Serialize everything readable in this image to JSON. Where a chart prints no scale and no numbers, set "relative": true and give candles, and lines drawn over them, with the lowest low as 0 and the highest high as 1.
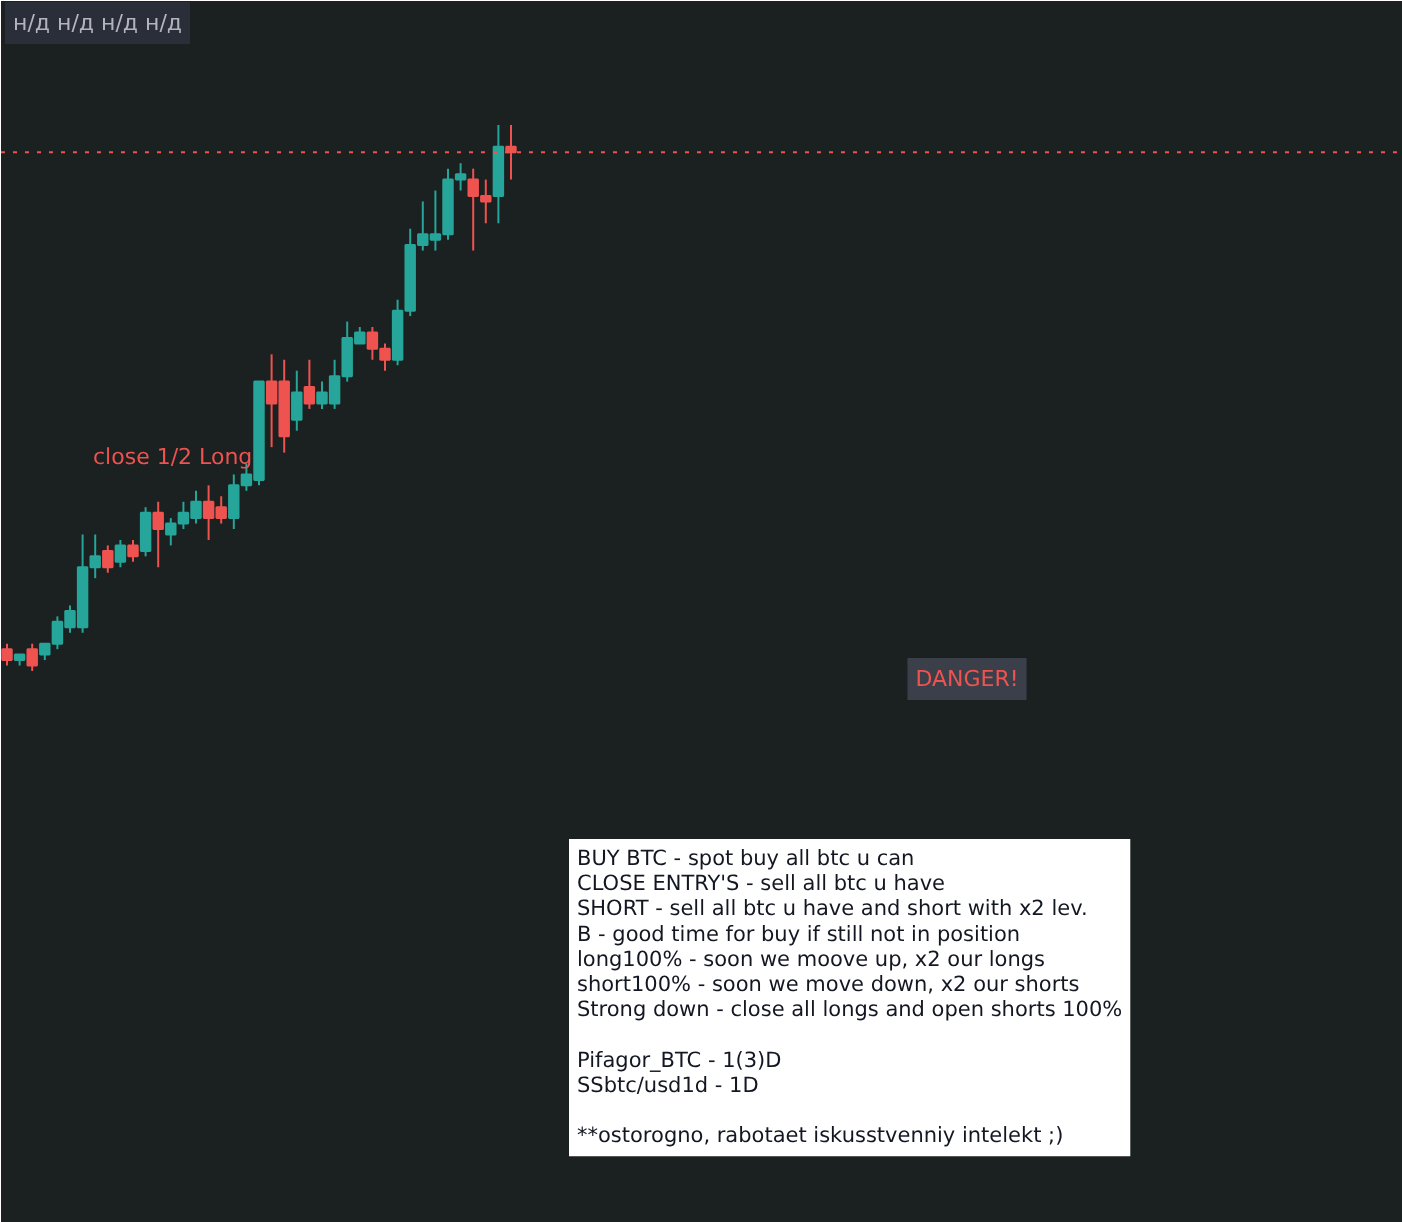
{
  "chart_data": {
    "type": "candlestick",
    "relative": true,
    "categories": [
      null,
      null,
      null,
      null,
      null,
      null,
      null,
      null,
      null,
      null,
      null,
      null,
      null,
      null,
      null,
      null,
      null,
      null,
      null,
      null,
      null,
      null,
      null,
      null,
      null,
      null,
      null,
      null,
      null,
      null,
      null,
      null,
      null,
      null,
      null,
      null,
      null,
      null,
      null,
      null,
      null
    ],
    "ohlc": [
      [
        0.04,
        0.05,
        0.01,
        0.02
      ],
      [
        0.02,
        0.03,
        0.01,
        0.03
      ],
      [
        0.04,
        0.05,
        0.0,
        0.01
      ],
      [
        0.03,
        0.05,
        0.02,
        0.05
      ],
      [
        0.05,
        0.1,
        0.04,
        0.09
      ],
      [
        0.08,
        0.12,
        0.07,
        0.11
      ],
      [
        0.08,
        0.25,
        0.07,
        0.19
      ],
      [
        0.19,
        0.25,
        0.17,
        0.21
      ],
      [
        0.22,
        0.23,
        0.18,
        0.19
      ],
      [
        0.2,
        0.24,
        0.19,
        0.23
      ],
      [
        0.23,
        0.24,
        0.2,
        0.21
      ],
      [
        0.22,
        0.3,
        0.21,
        0.29
      ],
      [
        0.29,
        0.31,
        0.19,
        0.26
      ],
      [
        0.25,
        0.28,
        0.23,
        0.27
      ],
      [
        0.27,
        0.31,
        0.26,
        0.29
      ],
      [
        0.28,
        0.33,
        0.27,
        0.31
      ],
      [
        0.31,
        0.34,
        0.24,
        0.28
      ],
      [
        0.3,
        0.32,
        0.27,
        0.28
      ],
      [
        0.28,
        0.36,
        0.26,
        0.34
      ],
      [
        0.34,
        0.38,
        0.33,
        0.36
      ],
      [
        0.35,
        0.53,
        0.34,
        0.53
      ],
      [
        0.53,
        0.58,
        0.41,
        0.49
      ],
      [
        0.53,
        0.57,
        0.4,
        0.43
      ],
      [
        0.46,
        0.55,
        0.44,
        0.51
      ],
      [
        0.52,
        0.57,
        0.48,
        0.49
      ],
      [
        0.49,
        0.53,
        0.48,
        0.51
      ],
      [
        0.49,
        0.57,
        0.48,
        0.54
      ],
      [
        0.54,
        0.64,
        0.53,
        0.61
      ],
      [
        0.6,
        0.63,
        0.6,
        0.62
      ],
      [
        0.62,
        0.63,
        0.57,
        0.59
      ],
      [
        0.59,
        0.6,
        0.55,
        0.57
      ],
      [
        0.57,
        0.68,
        0.56,
        0.66
      ],
      [
        0.66,
        0.81,
        0.65,
        0.78
      ],
      [
        0.78,
        0.86,
        0.77,
        0.8
      ],
      [
        0.79,
        0.88,
        0.77,
        0.8
      ],
      [
        0.8,
        0.92,
        0.79,
        0.9
      ],
      [
        0.9,
        0.93,
        0.88,
        0.91
      ],
      [
        0.9,
        0.92,
        0.77,
        0.87
      ],
      [
        0.87,
        0.9,
        0.82,
        0.86
      ],
      [
        0.87,
        1.0,
        0.82,
        0.96
      ],
      [
        0.96,
        1.0,
        0.9,
        0.95
      ]
    ],
    "colors": [
      "#ef5350",
      "#26a69a",
      "#ef5350",
      "#26a69a",
      "#26a69a",
      "#26a69a",
      "#26a69a",
      "#26a69a",
      "#ef5350",
      "#26a69a",
      "#ef5350",
      "#26a69a",
      "#ef5350",
      "#26a69a",
      "#26a69a",
      "#26a69a",
      "#ef5350",
      "#ef5350",
      "#26a69a",
      "#26a69a",
      "#26a69a",
      "#ef5350",
      "#ef5350",
      "#26a69a",
      "#ef5350",
      "#26a69a",
      "#26a69a",
      "#26a69a",
      "#26a69a",
      "#ef5350",
      "#ef5350",
      "#26a69a",
      "#26a69a",
      "#26a69a",
      "#26a69a",
      "#26a69a",
      "#26a69a",
      "#ef5350",
      "#ef5350",
      "#26a69a",
      "#ef5350"
    ],
    "ref_lines": [
      {
        "axis": "y",
        "value": 0.95,
        "color": "#ef5350",
        "line_style": "dotted"
      }
    ],
    "annotations": [
      "н/д н/д н/д н/д",
      "close 1/2 Long",
      "DANGER!",
      "BUY BTC - spot buy all btc u can\nCLOSE ENTRY'S - sell all btc u have\nSHORT - sell all btc u have and short with x2 lev.\n B - good time for buy if still not in position\nlong100% - soon we moove up, x2 our longs\nshort100% - soon we move down, x2 our shorts\nStrong down - close all longs and open shorts 100%\n\nPifagor_BTC - 1(3)D\nSSbtc/usd1d - 1D\n\n**ostorogno, rabotaet iskusstvenniy intelekt ;)"
    ]
  }
}
